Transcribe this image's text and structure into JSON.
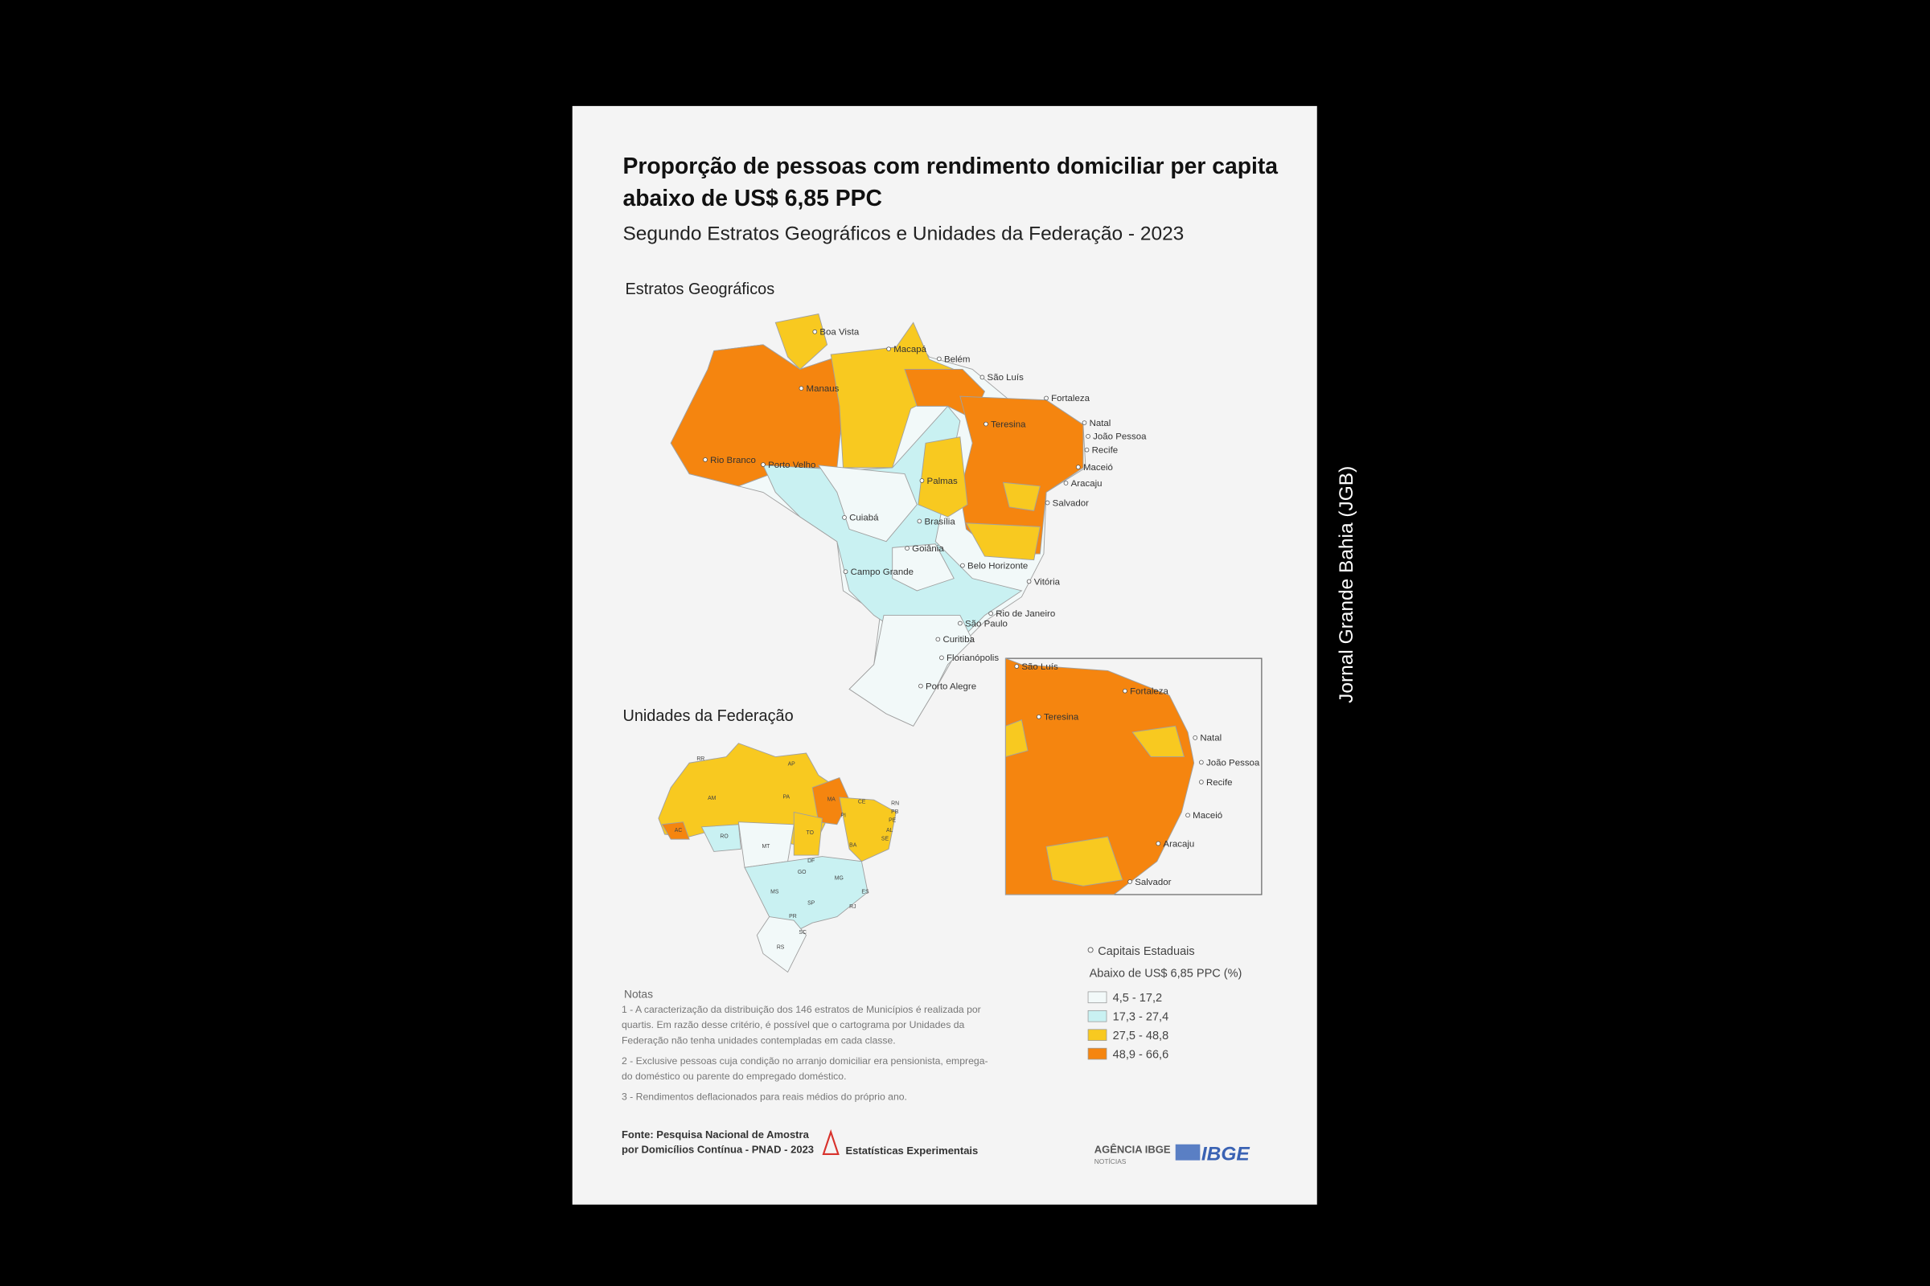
{
  "title_lines": [
    "Proporção de pessoas com rendimento domiciliar per capita",
    "abaixo de US$ 6,85 PPC"
  ],
  "subtitle": "Segundo Estratos Geográficos e Unidades da Federação - 2023",
  "section_strata": "Estratos Geográficos",
  "section_states": "Unidades da Federação",
  "capitals_main": [
    "Boa Vista",
    "Macapá",
    "Belém",
    "São Luís",
    "Fortaleza",
    "Teresina",
    "Natal",
    "João Pessoa",
    "Recife",
    "Maceió",
    "Aracaju",
    "Salvador",
    "Manaus",
    "Rio Branco",
    "Porto Velho",
    "Palmas",
    "Cuiabá",
    "Brasília",
    "Goiânia",
    "Campo Grande",
    "Belo Horizonte",
    "Vitória",
    "Rio de Janeiro",
    "São Paulo",
    "Curitiba",
    "Florianópolis",
    "Porto Alegre"
  ],
  "capitals_inset": [
    "São Luís",
    "Fortaleza",
    "Teresina",
    "Natal",
    "João Pessoa",
    "Recife",
    "Maceió",
    "Aracaju",
    "Salvador"
  ],
  "state_codes": [
    "RR",
    "AP",
    "AM",
    "PA",
    "MA",
    "CE",
    "RN",
    "PB",
    "PE",
    "AL",
    "SE",
    "PI",
    "AC",
    "RO",
    "TO",
    "BA",
    "MT",
    "DF",
    "GO",
    "MG",
    "MS",
    "ES",
    "SP",
    "RJ",
    "PR",
    "SC",
    "RS"
  ],
  "legend": {
    "capitals_label": "Capitais Estaduais",
    "title": "Abaixo de US$ 6,85 PPC (%)",
    "classes": [
      {
        "label": "4,5 - 17,2",
        "color": "#f2f9f9"
      },
      {
        "label": "17,3 - 27,4",
        "color": "#c9f1f2"
      },
      {
        "label": "27,5 - 48,8",
        "color": "#f8c920"
      },
      {
        "label": "48,9 - 66,6",
        "color": "#f5850f"
      }
    ]
  },
  "notes": {
    "heading": "Notas",
    "items": [
      [
        "1 - A caracterização da distribuição dos 146 estratos de Municípios é realizada por",
        "quartis. Em razão desse critério, é possível que o cartograma por Unidades da",
        "Federação não tenha unidades contempladas em cada classe."
      ],
      [
        "2 - Exclusive pessoas cuja condição no arranjo domiciliar era pensionista, emprega-",
        "do doméstico ou parente do empregado doméstico."
      ],
      [
        "3 - Rendimentos deflacionados para reais médios do próprio ano."
      ]
    ]
  },
  "source_lines": [
    "Fonte: Pesquisa Nacional de Amostra",
    "por Domicílios Contínua - PNAD - 2023"
  ],
  "badge": "Estatísticas Experimentais",
  "logos": {
    "agencia": "AGÊNCIA IBGE",
    "noticias": "NOTÍCIAS",
    "ibge": "IBGE"
  },
  "watermark": "Jornal Grande Bahia (JGB)"
}
